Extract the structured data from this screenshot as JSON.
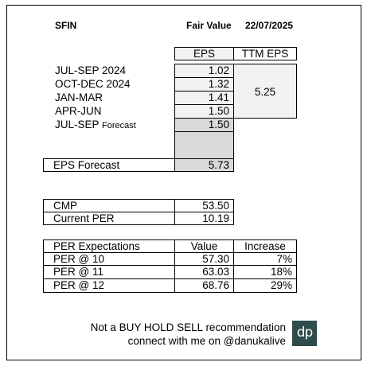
{
  "header": {
    "ticker": "SFIN",
    "fair_value_label": "Fair Value",
    "date": "22/07/2025"
  },
  "eps_table": {
    "col_eps": "EPS",
    "col_ttm": "TTM EPS",
    "rows": [
      {
        "quarter": "JUL-SEP 2024",
        "eps": "1.02"
      },
      {
        "quarter": "OCT-DEC 2024",
        "eps": "1.32"
      },
      {
        "quarter": "JAN-MAR",
        "eps": "1.41"
      },
      {
        "quarter": "APR-JUN",
        "eps": "1.50"
      }
    ],
    "forecast_row": {
      "quarter": "JUL-SEP",
      "suffix": "Forecast",
      "eps": "1.50"
    },
    "ttm_value": "5.25",
    "eps_forecast_label": "EPS Forecast",
    "eps_forecast_value": "5.73"
  },
  "price_table": {
    "cmp_label": "CMP",
    "cmp_value": "53.50",
    "per_label": "Current PER",
    "per_value": "10.19"
  },
  "per_table": {
    "headers": [
      "PER Expectations",
      "Value",
      "Increase"
    ],
    "rows": [
      {
        "label": "PER @ 10",
        "value": "57.30",
        "increase": "7%"
      },
      {
        "label": "PER @ 11",
        "value": "63.03",
        "increase": "18%"
      },
      {
        "label": "PER @ 12",
        "value": "68.76",
        "increase": "29%"
      }
    ]
  },
  "footer": {
    "line1": "Not a BUY HOLD SELL recommendation",
    "line2": "connect with me on @danukalive",
    "logo_text": "dp"
  },
  "colors": {
    "light_fill": "#f2f2f2",
    "dark_fill": "#d9d9d9",
    "logo_bg": "#2f4b4c"
  }
}
